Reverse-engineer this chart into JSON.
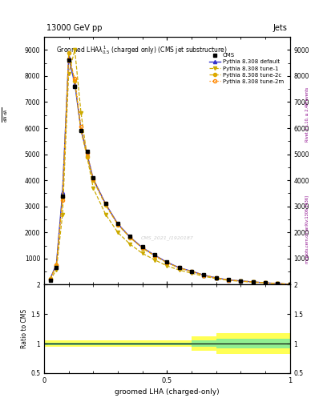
{
  "title_top": "13000 GeV pp",
  "title_right": "Jets",
  "xlabel": "groomed LHA (charged-only)",
  "ylabel_ratio": "Ratio to CMS",
  "watermark": "CMS_2021_I1920187",
  "right_label": "Rivet 3.1.10, ≥ 2.4M events",
  "arxiv_label": "mcplots.cern.ch [arXiv:1306.3436]",
  "cms_x": [
    0.025,
    0.05,
    0.075,
    0.1,
    0.125,
    0.15,
    0.175,
    0.2,
    0.25,
    0.3,
    0.35,
    0.4,
    0.45,
    0.5,
    0.55,
    0.6,
    0.65,
    0.7,
    0.75,
    0.8,
    0.85,
    0.9,
    0.95,
    1.0
  ],
  "cms_y": [
    180,
    650,
    3400,
    8600,
    7600,
    5900,
    5100,
    4100,
    3100,
    2350,
    1850,
    1450,
    1150,
    870,
    660,
    520,
    370,
    260,
    185,
    145,
    108,
    70,
    45,
    15
  ],
  "pythia_default_x": [
    0.025,
    0.05,
    0.075,
    0.1,
    0.125,
    0.15,
    0.175,
    0.2,
    0.25,
    0.3,
    0.35,
    0.4,
    0.45,
    0.5,
    0.55,
    0.6,
    0.65,
    0.7,
    0.75,
    0.8,
    0.85,
    0.9,
    0.95,
    1.0
  ],
  "pythia_default_y": [
    230,
    780,
    3550,
    8700,
    7700,
    5950,
    5000,
    4050,
    3100,
    2330,
    1820,
    1420,
    1130,
    860,
    650,
    515,
    365,
    258,
    182,
    142,
    106,
    68,
    43,
    13
  ],
  "pythia_tune1_x": [
    0.025,
    0.05,
    0.075,
    0.1,
    0.125,
    0.15,
    0.175,
    0.2,
    0.25,
    0.3,
    0.35,
    0.4,
    0.45,
    0.5,
    0.55,
    0.6,
    0.65,
    0.7,
    0.75,
    0.8,
    0.85,
    0.9,
    0.95,
    1.0
  ],
  "pythia_tune1_y": [
    160,
    580,
    2700,
    8100,
    9000,
    6600,
    4900,
    3700,
    2700,
    2000,
    1550,
    1200,
    950,
    720,
    560,
    440,
    320,
    230,
    165,
    128,
    96,
    64,
    41,
    14
  ],
  "pythia_tune2c_x": [
    0.025,
    0.05,
    0.075,
    0.1,
    0.125,
    0.15,
    0.175,
    0.2,
    0.25,
    0.3,
    0.35,
    0.4,
    0.45,
    0.5,
    0.55,
    0.6,
    0.65,
    0.7,
    0.75,
    0.8,
    0.85,
    0.9,
    0.95,
    1.0
  ],
  "pythia_tune2c_y": [
    220,
    760,
    3350,
    8900,
    7800,
    5900,
    4900,
    4000,
    3050,
    2300,
    1800,
    1400,
    1100,
    840,
    640,
    505,
    360,
    255,
    180,
    140,
    105,
    68,
    43,
    14
  ],
  "pythia_tune2m_x": [
    0.025,
    0.05,
    0.075,
    0.1,
    0.125,
    0.15,
    0.175,
    0.2,
    0.25,
    0.3,
    0.35,
    0.4,
    0.45,
    0.5,
    0.55,
    0.6,
    0.65,
    0.7,
    0.75,
    0.8,
    0.85,
    0.9,
    0.95,
    1.0
  ],
  "pythia_tune2m_y": [
    210,
    740,
    3250,
    8650,
    7900,
    6050,
    5050,
    4080,
    3100,
    2330,
    1820,
    1420,
    1130,
    855,
    645,
    510,
    363,
    257,
    182,
    142,
    107,
    69,
    44,
    14
  ],
  "ratio_x_edges": [
    0.0,
    0.025,
    0.05,
    0.075,
    0.1,
    0.125,
    0.15,
    0.175,
    0.2,
    0.25,
    0.3,
    0.35,
    0.4,
    0.45,
    0.5,
    0.55,
    0.6,
    0.65,
    0.7,
    0.75,
    0.8,
    0.85,
    0.9,
    0.95,
    1.0
  ],
  "ratio_green_lo": [
    0.98,
    0.98,
    0.98,
    0.98,
    0.98,
    0.98,
    0.98,
    0.98,
    0.98,
    0.98,
    0.98,
    0.98,
    0.98,
    0.98,
    0.98,
    0.98,
    0.95,
    0.95,
    0.92,
    0.92,
    0.92,
    0.92,
    0.92,
    0.92
  ],
  "ratio_green_hi": [
    1.02,
    1.02,
    1.02,
    1.02,
    1.02,
    1.02,
    1.02,
    1.02,
    1.02,
    1.02,
    1.02,
    1.02,
    1.02,
    1.02,
    1.02,
    1.02,
    1.05,
    1.05,
    1.08,
    1.08,
    1.08,
    1.08,
    1.08,
    1.08
  ],
  "ratio_yellow_lo": [
    0.95,
    0.95,
    0.95,
    0.95,
    0.95,
    0.95,
    0.95,
    0.95,
    0.95,
    0.95,
    0.95,
    0.95,
    0.95,
    0.95,
    0.95,
    0.95,
    0.88,
    0.88,
    0.82,
    0.82,
    0.82,
    0.82,
    0.82,
    0.82
  ],
  "ratio_yellow_hi": [
    1.05,
    1.05,
    1.05,
    1.05,
    1.05,
    1.05,
    1.05,
    1.05,
    1.05,
    1.05,
    1.05,
    1.05,
    1.05,
    1.05,
    1.05,
    1.05,
    1.12,
    1.12,
    1.18,
    1.18,
    1.18,
    1.18,
    1.18,
    1.18
  ],
  "ylim_main": [
    0,
    9500
  ],
  "ylim_ratio": [
    0.5,
    2.0
  ],
  "xlim": [
    0.0,
    1.0
  ],
  "color_default": "#3333cc",
  "color_tune1": "#ccaa00",
  "color_tune2c": "#ddaa00",
  "color_tune2m": "#ff8800",
  "yticks_main": [
    0,
    1000,
    2000,
    3000,
    4000,
    5000,
    6000,
    7000,
    8000,
    9000
  ]
}
